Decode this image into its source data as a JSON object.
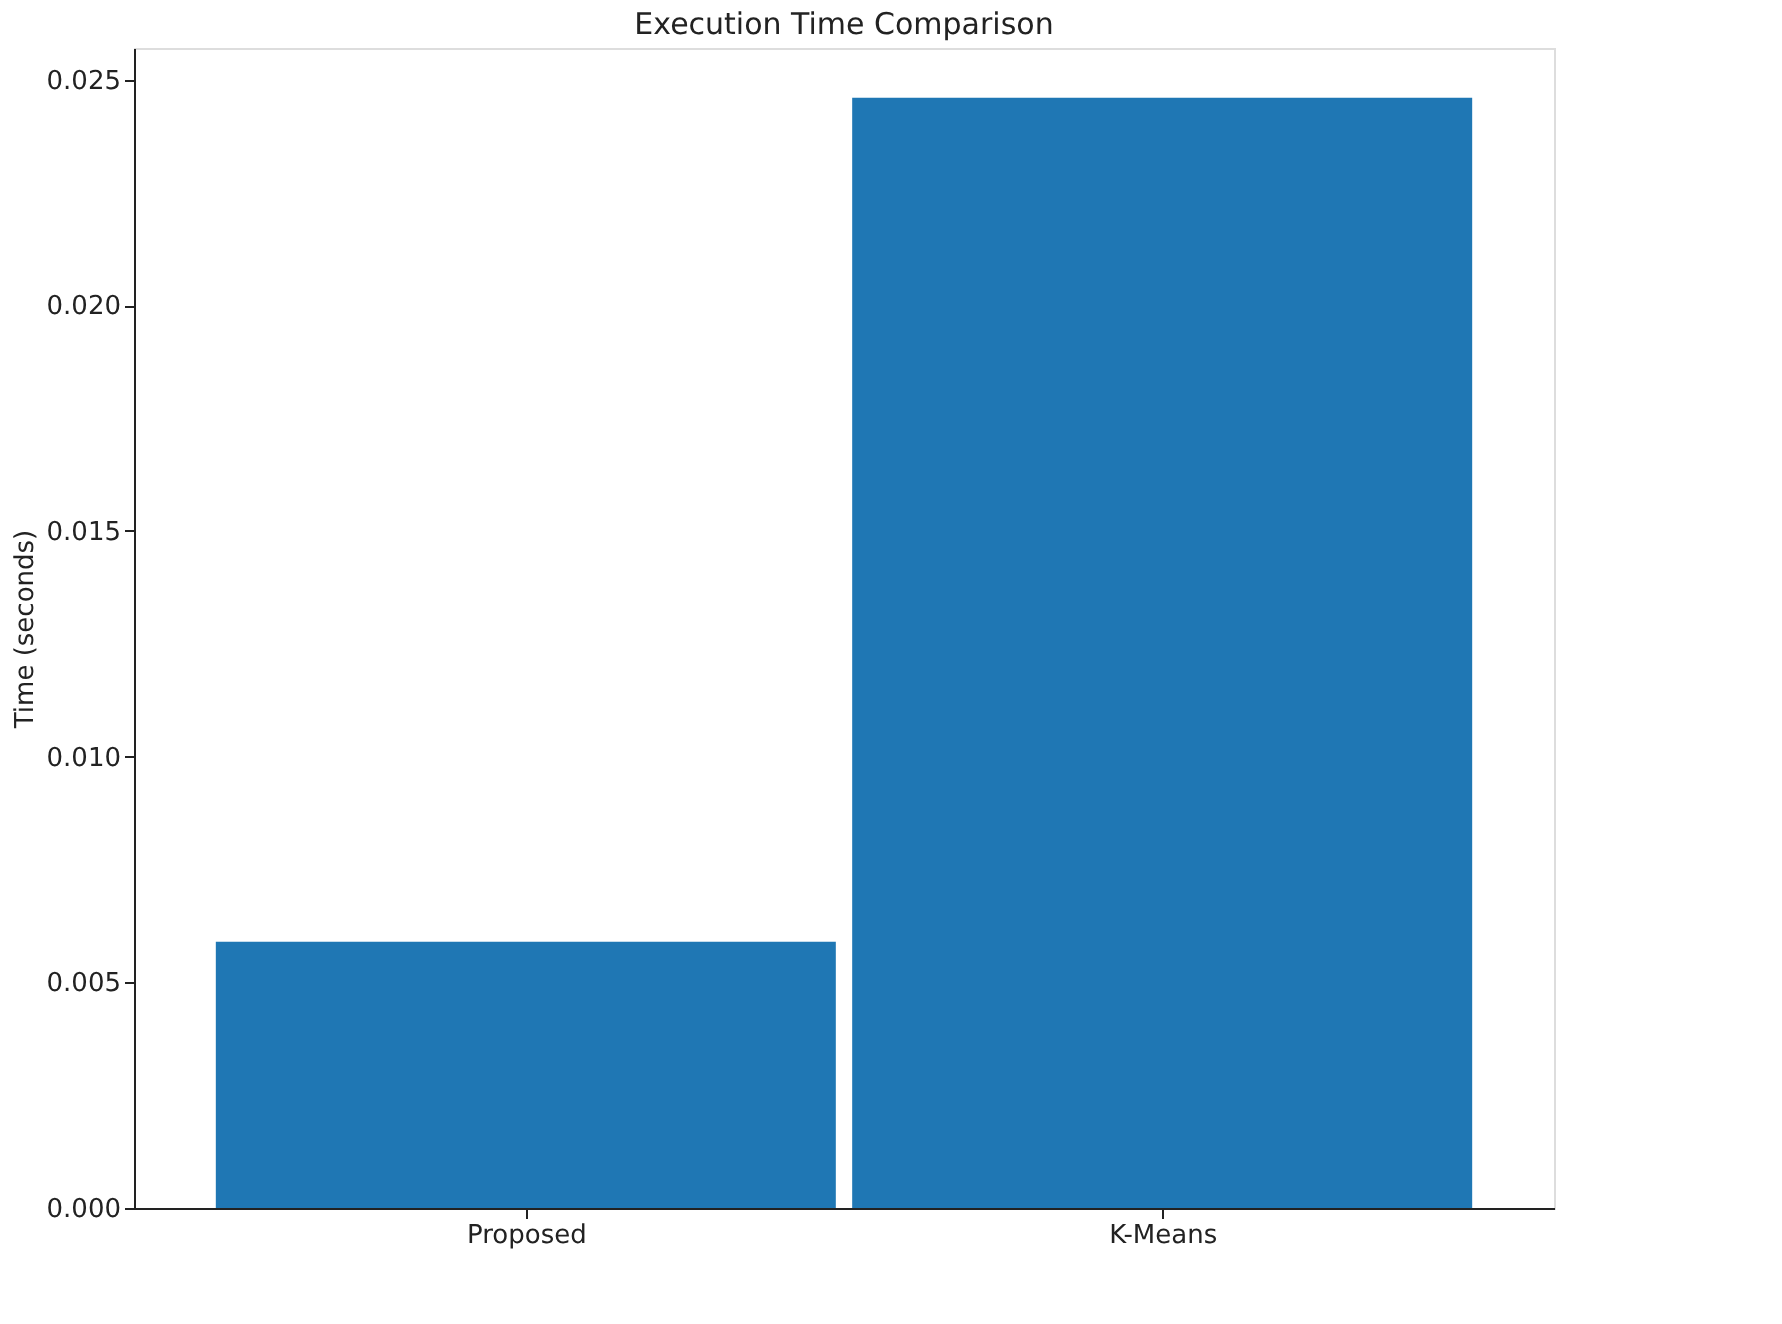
{
  "chart_data": {
    "type": "bar",
    "title": "Execution Time Comparison",
    "ylabel": "Time (seconds)",
    "categories": [
      "Proposed",
      "K-Means"
    ],
    "values": [
      0.0059,
      0.0246
    ],
    "color": "#1f77b4",
    "ylim": [
      0,
      0.0257
    ],
    "yticks": [
      {
        "value": 0,
        "label": "0.000"
      },
      {
        "value": 0.005,
        "label": "0.005"
      },
      {
        "value": 0.01,
        "label": "0.010"
      },
      {
        "value": 0.015,
        "label": "0.015"
      },
      {
        "value": 0.02,
        "label": "0.020"
      },
      {
        "value": 0.025,
        "label": "0.025"
      }
    ],
    "grid": false
  }
}
